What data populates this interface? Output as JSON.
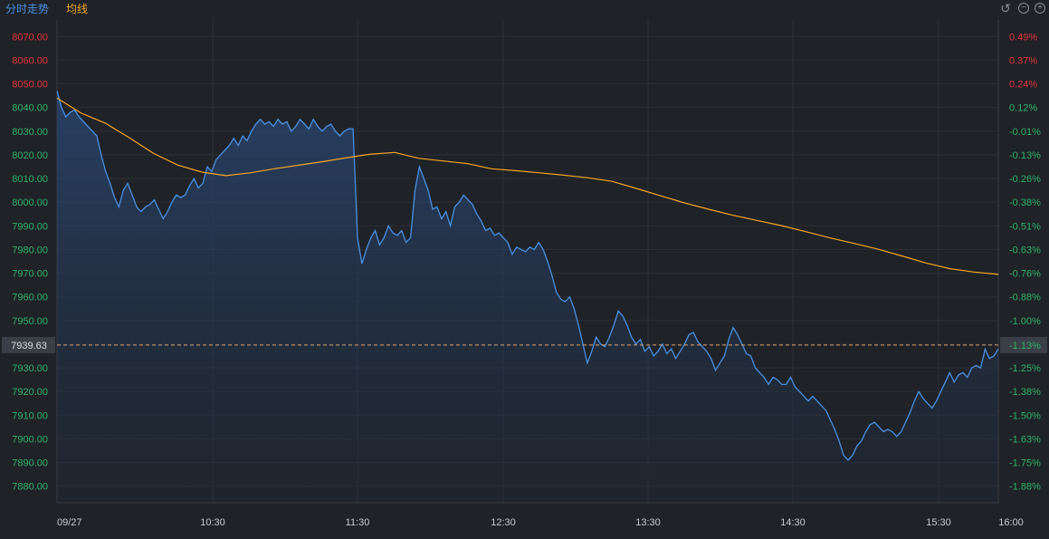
{
  "header": {
    "legend_price": "分时走势",
    "legend_avg": "均线",
    "icons": [
      "undo-icon",
      "zoom-out-icon",
      "zoom-in-icon"
    ]
  },
  "colors": {
    "background": "#1f2227",
    "grid": "#2c3036",
    "price_line": "#4a90e2",
    "avg_line": "#f5a623",
    "up": "#e0353d",
    "down": "#2fb36a",
    "axis_text": "#9aa0a8",
    "current_label_bg": "#3a3f47"
  },
  "chart_data": {
    "type": "line",
    "title": "",
    "date_label": "09/27",
    "x_tick_labels": [
      "09/27",
      "10:30",
      "11:30",
      "12:30",
      "13:30",
      "14:30",
      "15:30",
      "16:00"
    ],
    "y_left_ticks": [
      "8070.00",
      "8060.00",
      "8050.00",
      "8040.00",
      "8030.00",
      "8020.00",
      "8010.00",
      "8000.00",
      "7990.00",
      "7980.00",
      "7970.00",
      "7960.00",
      "7950.00",
      "7940.00",
      "7930.00",
      "7920.00",
      "7910.00",
      "7900.00",
      "7890.00",
      "7880.00"
    ],
    "y_right_ticks": [
      "0.49%",
      "0.37%",
      "0.24%",
      "0.12%",
      "-0.01%",
      "-0.13%",
      "-0.26%",
      "-0.38%",
      "-0.51%",
      "-0.63%",
      "-0.76%",
      "-0.88%",
      "-1.00%",
      "-1.13%",
      "-1.25%",
      "-1.38%",
      "-1.50%",
      "-1.63%",
      "-1.75%",
      "-1.88%"
    ],
    "ylim": [
      7873,
      8077
    ],
    "reference_price": 8040.9,
    "current_value": "7939.63",
    "current_pct": "-1.13%",
    "series": [
      {
        "values": [
          8047,
          8040,
          8036,
          8038,
          8039,
          8036,
          8034,
          8032,
          8030,
          8028,
          8020,
          8013,
          8008,
          8002,
          7998,
          8005,
          8008,
          8003,
          7998,
          7996,
          7998,
          7999,
          8001,
          7997,
          7993,
          7996,
          8000,
          8003,
          8002,
          8003,
          8007,
          8010,
          8006,
          8008,
          8015,
          8013,
          8018,
          8020,
          8022,
          8024,
          8027,
          8024,
          8028,
          8026,
          8030,
          8033,
          8035,
          8033,
          8034,
          8032,
          8035,
          8033,
          8034,
          8030,
          8032,
          8035,
          8033,
          8031,
          8035,
          8032,
          8030,
          8032,
          8033,
          8030,
          8028,
          8030,
          8031,
          8031,
          7985,
          7974,
          7980,
          7985,
          7988,
          7982,
          7985,
          7990,
          7987,
          7986,
          7988,
          7983,
          7985,
          8005,
          8015,
          8010,
          8005,
          7997,
          7998,
          7993,
          7996,
          7990,
          7998,
          8000,
          8003,
          8001,
          7999,
          7995,
          7992,
          7988,
          7989,
          7986,
          7987,
          7985,
          7983,
          7978,
          7981,
          7980,
          7979,
          7981,
          7980,
          7983,
          7980,
          7975,
          7969,
          7962,
          7959,
          7958,
          7960,
          7955,
          7948,
          7940,
          7932,
          7937,
          7943,
          7940,
          7939,
          7943,
          7948,
          7954,
          7952,
          7948,
          7943,
          7940,
          7942,
          7937,
          7939,
          7935,
          7937,
          7940,
          7936,
          7938,
          7934,
          7937,
          7940,
          7944,
          7945,
          7941,
          7939,
          7937,
          7934,
          7929,
          7932,
          7935,
          7942,
          7947,
          7944,
          7940,
          7936,
          7935,
          7930,
          7928,
          7926,
          7923,
          7926,
          7925,
          7923,
          7923,
          7926,
          7922,
          7920,
          7918,
          7916,
          7918,
          7916,
          7914,
          7912,
          7908,
          7904,
          7899,
          7893,
          7891,
          7893,
          7897,
          7899,
          7903,
          7906,
          7907,
          7905,
          7903,
          7904,
          7903,
          7901,
          7903,
          7907,
          7911,
          7916,
          7920,
          7917,
          7915,
          7913,
          7916,
          7920,
          7924,
          7928,
          7924,
          7927,
          7928,
          7926,
          7930,
          7931,
          7930,
          7938,
          7934,
          7935,
          7938
        ]
      },
      {
        "values": [
          8044,
          8037.6,
          8033.4,
          8027.2,
          8020.6,
          8015.7,
          8012.7,
          8011.2,
          8012.4,
          8014.1,
          8015.6,
          8017.1,
          8018.8,
          8020.3,
          8021.0,
          8018.5,
          8017.4,
          8016.3,
          8014.1,
          8013.3,
          8012.4,
          8011.4,
          8010.3,
          8008.8,
          8005.8,
          8002.7,
          7999.7,
          7997.0,
          7994.5,
          7992.3,
          7990.1,
          7987.6,
          7985.0,
          7982.6,
          7980.2,
          7977.3,
          7974.3,
          7971.9,
          7970.5,
          7969.5
        ]
      }
    ]
  }
}
